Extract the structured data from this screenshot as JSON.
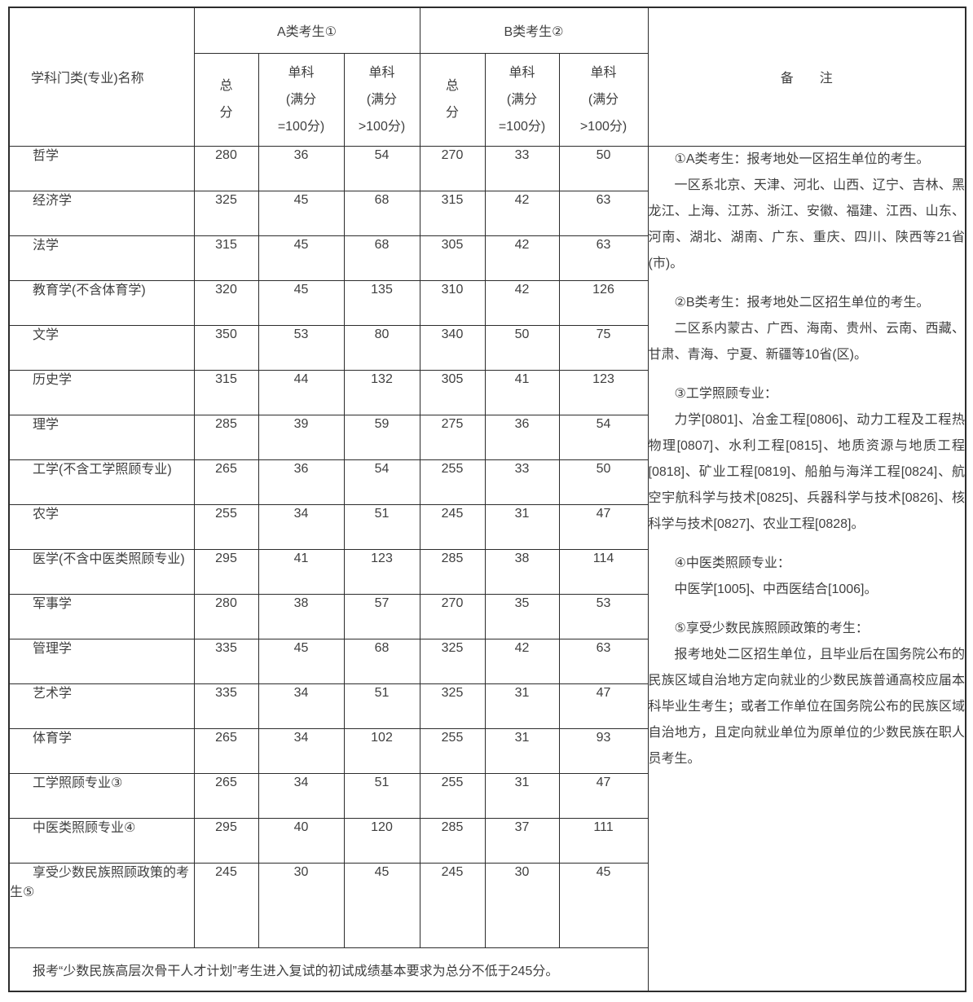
{
  "colors": {
    "border": "#2c2c2c",
    "text": "#3f3f3f",
    "background": "#ffffff"
  },
  "table": {
    "header": {
      "subject_col": "学科门类(专业)名称",
      "group_a": "A类考生①",
      "group_b": "B类考生②",
      "remark": "备　　注",
      "sub": [
        "总\n分",
        "单科\n(满分\n=100分)",
        "单科\n(满分\n>100分)"
      ]
    },
    "rows": [
      {
        "name": "哲学",
        "values": [
          280,
          36,
          54,
          270,
          33,
          50
        ]
      },
      {
        "name": "经济学",
        "values": [
          325,
          45,
          68,
          315,
          42,
          63
        ]
      },
      {
        "name": "法学",
        "values": [
          315,
          45,
          68,
          305,
          42,
          63
        ]
      },
      {
        "name": "教育学(不含体育学)",
        "values": [
          320,
          45,
          135,
          310,
          42,
          126
        ]
      },
      {
        "name": "文学",
        "values": [
          350,
          53,
          80,
          340,
          50,
          75
        ]
      },
      {
        "name": "历史学",
        "values": [
          315,
          44,
          132,
          305,
          41,
          123
        ]
      },
      {
        "name": "理学",
        "values": [
          285,
          39,
          59,
          275,
          36,
          54
        ]
      },
      {
        "name": "工学(不含工学照顾专业)",
        "values": [
          265,
          36,
          54,
          255,
          33,
          50
        ]
      },
      {
        "name": "农学",
        "values": [
          255,
          34,
          51,
          245,
          31,
          47
        ]
      },
      {
        "name": "医学(不含中医类照顾专业)",
        "values": [
          295,
          41,
          123,
          285,
          38,
          114
        ]
      },
      {
        "name": "军事学",
        "values": [
          280,
          38,
          57,
          270,
          35,
          53
        ]
      },
      {
        "name": "管理学",
        "values": [
          335,
          45,
          68,
          325,
          42,
          63
        ]
      },
      {
        "name": "艺术学",
        "values": [
          335,
          34,
          51,
          325,
          31,
          47
        ]
      },
      {
        "name": "体育学",
        "values": [
          265,
          34,
          102,
          255,
          31,
          93
        ]
      },
      {
        "name": "工学照顾专业③",
        "values": [
          265,
          34,
          51,
          255,
          31,
          47
        ]
      },
      {
        "name": "中医类照顾专业④",
        "values": [
          295,
          40,
          120,
          285,
          37,
          111
        ]
      },
      {
        "name": "享受少数民族照顾政策的考生⑤",
        "values": [
          245,
          30,
          45,
          245,
          30,
          45
        ]
      }
    ],
    "remarks": [
      {
        "text": "①A类考生：报考地处一区招生单位的考生。",
        "gap_before": false
      },
      {
        "text": "一区系北京、天津、河北、山西、辽宁、吉林、黑龙江、上海、江苏、浙江、安徽、福建、江西、山东、河南、湖北、湖南、广东、重庆、四川、陕西等21省 (市)。",
        "gap_before": false
      },
      {
        "text": "②B类考生：报考地处二区招生单位的考生。",
        "gap_before": true
      },
      {
        "text": "二区系内蒙古、广西、海南、贵州、云南、西藏、甘肃、青海、宁夏、新疆等10省(区)。",
        "gap_before": false
      },
      {
        "text": "③工学照顾专业：",
        "gap_before": true
      },
      {
        "text": "力学[0801]、冶金工程[0806]、动力工程及工程热物理[0807]、水利工程[0815]、地质资源与地质工程[0818]、矿业工程[0819]、船舶与海洋工程[0824]、航空宇航科学与技术[0825]、兵器科学与技术[0826]、核科学与技术[0827]、农业工程[0828]。",
        "gap_before": false
      },
      {
        "text": "④中医类照顾专业：",
        "gap_before": true
      },
      {
        "text": "中医学[1005]、中西医结合[1006]。",
        "gap_before": false
      },
      {
        "text": "⑤享受少数民族照顾政策的考生：",
        "gap_before": true
      },
      {
        "text": "报考地处二区招生单位，且毕业后在国务院公布的民族区域自治地方定向就业的少数民族普通高校应届本科毕业生考生；或者工作单位在国务院公布的民族区域自治地方，且定向就业单位为原单位的少数民族在职人员考生。",
        "gap_before": false
      }
    ],
    "footer": "报考“少数民族高层次骨干人才计划”考生进入复试的初试成绩基本要求为总分不低于245分。"
  }
}
